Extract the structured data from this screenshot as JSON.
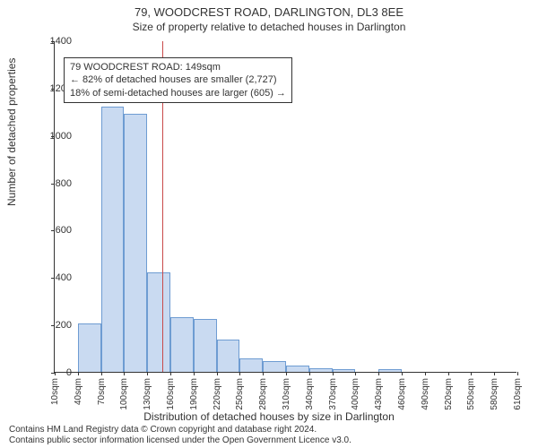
{
  "title": "79, WOODCREST ROAD, DARLINGTON, DL3 8EE",
  "subtitle": "Size of property relative to detached houses in Darlington",
  "ylabel": "Number of detached properties",
  "xlabel": "Distribution of detached houses by size in Darlington",
  "footer1": "Contains HM Land Registry data © Crown copyright and database right 2024.",
  "footer2": "Contains public sector information licensed under the Open Government Licence v3.0.",
  "chart": {
    "type": "histogram",
    "ylim": [
      0,
      1400
    ],
    "ytick_step": 200,
    "xticks": [
      10,
      40,
      70,
      100,
      130,
      160,
      190,
      220,
      250,
      280,
      310,
      340,
      370,
      400,
      430,
      460,
      490,
      520,
      550,
      580,
      610
    ],
    "xtick_suffix": "sqm",
    "bar_color": "#c9daf1",
    "bar_border": "#6e9cd2",
    "refline_color": "#c94a4a",
    "refline_x": 149,
    "background_color": "#ffffff",
    "axis_color": "#333333",
    "bars": [
      {
        "x0": 10,
        "x1": 40,
        "v": 0
      },
      {
        "x0": 40,
        "x1": 70,
        "v": 205
      },
      {
        "x0": 70,
        "x1": 100,
        "v": 1120
      },
      {
        "x0": 100,
        "x1": 130,
        "v": 1090
      },
      {
        "x0": 130,
        "x1": 160,
        "v": 420
      },
      {
        "x0": 160,
        "x1": 190,
        "v": 230
      },
      {
        "x0": 190,
        "x1": 220,
        "v": 225
      },
      {
        "x0": 220,
        "x1": 250,
        "v": 135
      },
      {
        "x0": 250,
        "x1": 280,
        "v": 55
      },
      {
        "x0": 280,
        "x1": 310,
        "v": 45
      },
      {
        "x0": 310,
        "x1": 340,
        "v": 25
      },
      {
        "x0": 340,
        "x1": 370,
        "v": 15
      },
      {
        "x0": 370,
        "x1": 400,
        "v": 12
      },
      {
        "x0": 400,
        "x1": 430,
        "v": 0
      },
      {
        "x0": 430,
        "x1": 460,
        "v": 10
      },
      {
        "x0": 460,
        "x1": 490,
        "v": 0
      },
      {
        "x0": 490,
        "x1": 520,
        "v": 0
      },
      {
        "x0": 520,
        "x1": 550,
        "v": 0
      },
      {
        "x0": 550,
        "x1": 580,
        "v": 0
      },
      {
        "x0": 580,
        "x1": 610,
        "v": 0
      }
    ]
  },
  "annot": {
    "line1": "79 WOODCREST ROAD: 149sqm",
    "line2": "← 82% of detached houses are smaller (2,727)",
    "line3": "18% of semi-detached houses are larger (605) →"
  }
}
